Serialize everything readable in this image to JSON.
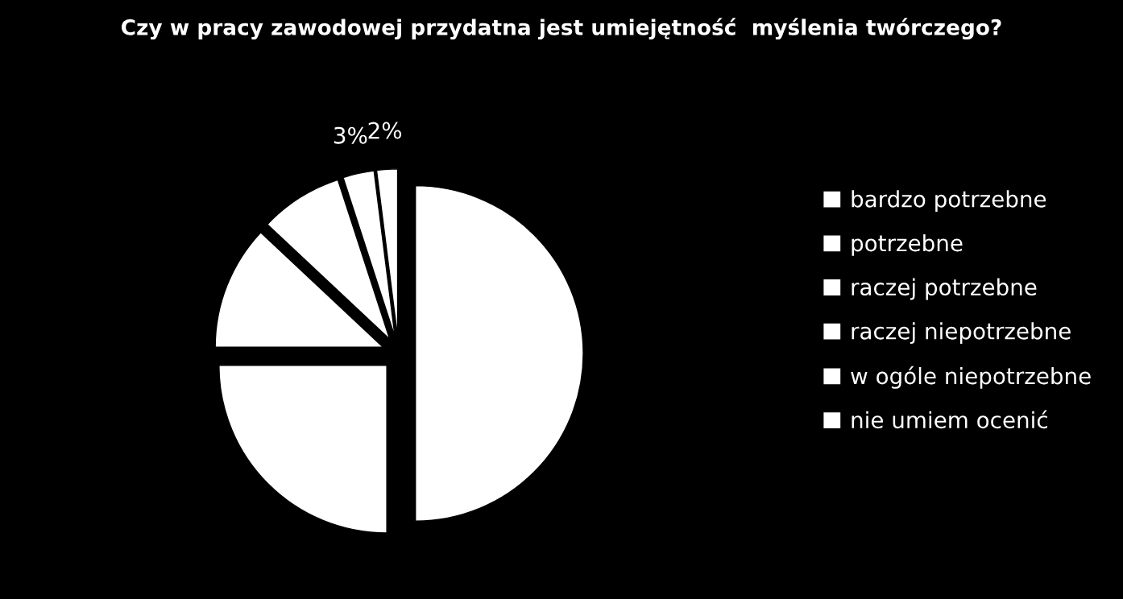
{
  "chart_data": {
    "type": "pie",
    "title": "Czy w pracy zawodowej przydatna jest umiejętność  myślenia twórczego?",
    "categories": [
      "bardzo potrzebne",
      "potrzebne",
      "raczej potrzebne",
      "raczej niepotrzebne",
      "w ogóle niepotrzebne",
      "nie umiem ocenić"
    ],
    "values": [
      50,
      25,
      12,
      8,
      3,
      2
    ],
    "colors": [
      "#ffffff",
      "#ffffff",
      "#ffffff",
      "#ffffff",
      "#ffffff",
      "#ffffff"
    ],
    "value_labels": [
      null,
      null,
      null,
      null,
      "3%",
      "2%"
    ],
    "legend": "right"
  }
}
